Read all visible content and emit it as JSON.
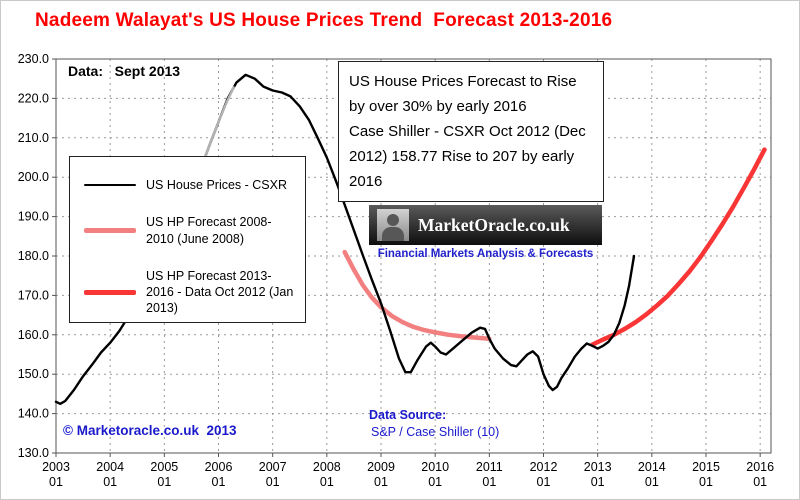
{
  "title": "Nadeem Walayat's US House Prices Trend  Forecast 2013-2016",
  "data_label": "Data:   Sept 2013",
  "annotation": {
    "line1": "US House Prices Forecast to Rise by over 30% by early 2016",
    "line2": "Case Shiller - CSXR Oct 2012 (Dec 2012) 158.77 Rise to 207 by early 2016"
  },
  "legend": {
    "items": [
      {
        "label": "US House Prices - CSXR",
        "color": "#000000",
        "thickness": 2
      },
      {
        "label": "US HP Forecast 2008-2010 (June 2008)",
        "color": "#f28080",
        "thickness": 5
      },
      {
        "label": "US HP Forecast 2013-2016  - Data Oct 2012 (Jan 2013)",
        "color": "#f93535",
        "thickness": 5
      }
    ]
  },
  "logo": {
    "title": "MarketOracle.co.uk",
    "subtitle": "Financial Markets Analysis & Forecasts"
  },
  "footer": {
    "copyright": "© Marketoracle.co.uk  2013",
    "data_source_label": "Data Source:",
    "data_source_value": "S&P / Case Shiller (10)"
  },
  "chart_data": {
    "type": "line",
    "title": "Nadeem Walayat's US House Prices Trend Forecast 2013-2016",
    "xlabel": "",
    "ylabel": "",
    "grid": true,
    "legend_position": "left-inside",
    "x_range": [
      2003.0,
      2016.2
    ],
    "y_range": [
      130,
      230
    ],
    "y_ticks": [
      "130.0",
      "140.0",
      "150.0",
      "160.0",
      "170.0",
      "180.0",
      "190.0",
      "200.0",
      "210.0",
      "220.0",
      "230.0"
    ],
    "x_ticks": [
      {
        "year": "2003",
        "month": "01"
      },
      {
        "year": "2004",
        "month": "01"
      },
      {
        "year": "2005",
        "month": "01"
      },
      {
        "year": "2006",
        "month": "01"
      },
      {
        "year": "2007",
        "month": "01"
      },
      {
        "year": "2008",
        "month": "01"
      },
      {
        "year": "2009",
        "month": "01"
      },
      {
        "year": "2010",
        "month": "01"
      },
      {
        "year": "2011",
        "month": "01"
      },
      {
        "year": "2012",
        "month": "01"
      },
      {
        "year": "2013",
        "month": "01"
      },
      {
        "year": "2014",
        "month": "01"
      },
      {
        "year": "2015",
        "month": "01"
      },
      {
        "year": "2016",
        "month": "01"
      }
    ],
    "series": [
      {
        "id": "forecast-2008-2010",
        "name": "US HP Forecast 2008-2010 (June 2008)",
        "color": "#f28080",
        "width": 4.5,
        "points": [
          [
            2008.33,
            181
          ],
          [
            2008.5,
            176.5
          ],
          [
            2008.67,
            172.5
          ],
          [
            2008.83,
            169.5
          ],
          [
            2009.0,
            167
          ],
          [
            2009.2,
            164.8
          ],
          [
            2009.4,
            163.2
          ],
          [
            2009.6,
            162
          ],
          [
            2009.8,
            161.2
          ],
          [
            2010.0,
            160.6
          ],
          [
            2010.25,
            160
          ],
          [
            2010.5,
            159.6
          ],
          [
            2010.75,
            159.3
          ],
          [
            2011.0,
            159
          ]
        ]
      },
      {
        "id": "forecast-2013-2016",
        "name": "US HP Forecast 2013-2016 - Data Oct 2012 (Jan 2013)",
        "color": "#f93535",
        "width": 4.5,
        "points": [
          [
            2012.9,
            157.5
          ],
          [
            2013.1,
            158.8
          ],
          [
            2013.3,
            160
          ],
          [
            2013.5,
            161.5
          ],
          [
            2013.7,
            163.2
          ],
          [
            2013.9,
            165.2
          ],
          [
            2014.1,
            167.5
          ],
          [
            2014.3,
            170
          ],
          [
            2014.5,
            173
          ],
          [
            2014.7,
            176.2
          ],
          [
            2014.9,
            179.8
          ],
          [
            2015.1,
            183.8
          ],
          [
            2015.3,
            188
          ],
          [
            2015.5,
            192.5
          ],
          [
            2015.7,
            197.3
          ],
          [
            2015.9,
            202.3
          ],
          [
            2016.08,
            207
          ]
        ]
      },
      {
        "id": "csxr",
        "name": "US House Prices - CSXR",
        "color": "#000000",
        "width": 2.4,
        "points": [
          [
            2003.0,
            143
          ],
          [
            2003.08,
            142.5
          ],
          [
            2003.17,
            143.2
          ],
          [
            2003.33,
            146
          ],
          [
            2003.5,
            149.5
          ],
          [
            2003.67,
            152.5
          ],
          [
            2003.83,
            155.5
          ],
          [
            2004.0,
            158
          ],
          [
            2004.17,
            161
          ],
          [
            2004.33,
            164.5
          ],
          [
            2004.5,
            168
          ],
          [
            2004.67,
            171.5
          ],
          [
            2004.83,
            175
          ],
          [
            2005.0,
            179
          ],
          [
            2005.17,
            184
          ],
          [
            2005.33,
            190
          ],
          [
            2005.5,
            196
          ],
          [
            2005.67,
            202
          ],
          [
            2005.83,
            208
          ],
          [
            2006.0,
            214
          ],
          [
            2006.17,
            220
          ],
          [
            2006.33,
            224
          ],
          [
            2006.5,
            226
          ],
          [
            2006.67,
            225
          ],
          [
            2006.83,
            223
          ],
          [
            2007.0,
            222
          ],
          [
            2007.17,
            221.5
          ],
          [
            2007.33,
            220.5
          ],
          [
            2007.5,
            218
          ],
          [
            2007.67,
            214.5
          ],
          [
            2007.83,
            210
          ],
          [
            2008.0,
            205
          ],
          [
            2008.17,
            199
          ],
          [
            2008.33,
            193
          ],
          [
            2008.5,
            186.5
          ],
          [
            2008.67,
            180
          ],
          [
            2008.83,
            174
          ],
          [
            2009.0,
            168
          ],
          [
            2009.17,
            161
          ],
          [
            2009.33,
            154
          ],
          [
            2009.45,
            150.5
          ],
          [
            2009.55,
            150.5
          ],
          [
            2009.67,
            153.5
          ],
          [
            2009.83,
            157
          ],
          [
            2009.92,
            158
          ],
          [
            2010.0,
            157
          ],
          [
            2010.1,
            155.5
          ],
          [
            2010.2,
            155
          ],
          [
            2010.33,
            156.5
          ],
          [
            2010.5,
            158.5
          ],
          [
            2010.67,
            160.5
          ],
          [
            2010.83,
            161.8
          ],
          [
            2010.92,
            161.5
          ],
          [
            2011.0,
            159
          ],
          [
            2011.1,
            156.5
          ],
          [
            2011.25,
            154
          ],
          [
            2011.4,
            152.3
          ],
          [
            2011.5,
            152
          ],
          [
            2011.6,
            153.5
          ],
          [
            2011.7,
            155
          ],
          [
            2011.8,
            155.8
          ],
          [
            2011.9,
            154.5
          ],
          [
            2012.0,
            150
          ],
          [
            2012.1,
            147
          ],
          [
            2012.17,
            146
          ],
          [
            2012.25,
            146.8
          ],
          [
            2012.33,
            149
          ],
          [
            2012.45,
            151.5
          ],
          [
            2012.58,
            154.5
          ],
          [
            2012.7,
            156.5
          ],
          [
            2012.8,
            157.8
          ],
          [
            2012.9,
            157.2
          ],
          [
            2013.0,
            156.5
          ],
          [
            2013.1,
            157.2
          ],
          [
            2013.2,
            158.2
          ],
          [
            2013.3,
            160
          ],
          [
            2013.4,
            163
          ],
          [
            2013.5,
            167.5
          ],
          [
            2013.58,
            172.5
          ],
          [
            2013.67,
            180
          ]
        ]
      },
      {
        "id": "csxr-gray-segment",
        "name": "US House Prices - CSXR (gray segment)",
        "color": "#b3b3b3",
        "width": 2.4,
        "points": [
          [
            2004.83,
            175
          ],
          [
            2005.0,
            179
          ],
          [
            2005.17,
            184
          ],
          [
            2005.33,
            190
          ],
          [
            2005.5,
            196
          ],
          [
            2005.67,
            202
          ],
          [
            2005.83,
            208
          ],
          [
            2006.0,
            214
          ],
          [
            2006.15,
            219
          ],
          [
            2006.28,
            222.8
          ]
        ]
      }
    ]
  }
}
